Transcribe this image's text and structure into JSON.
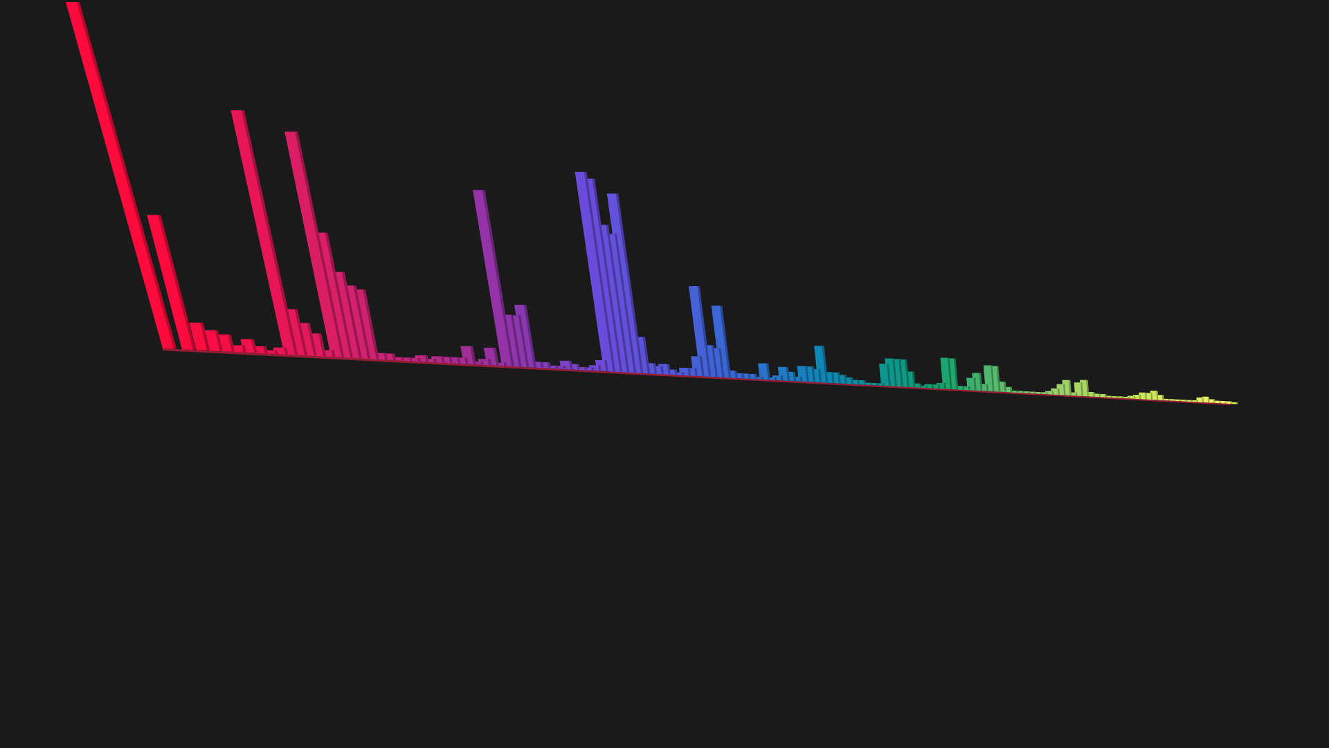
{
  "colors": {
    "background": "#1a1a1a",
    "stops": [
      "#ff0a3c",
      "#d6206a",
      "#9a2f9e",
      "#6a4cdc",
      "#3b66d6",
      "#0a8ab0",
      "#13a06c",
      "#8fcf6e",
      "#c8e35a",
      "#f5f76a"
    ]
  },
  "chart_data": {
    "type": "bar",
    "title": "",
    "xlabel": "",
    "ylabel": "",
    "grid": false,
    "legend": "none",
    "perspective": "3d-receding",
    "ylim": [
      0,
      100
    ],
    "values": [
      100,
      39,
      8,
      6,
      5,
      2,
      4,
      2,
      1,
      2,
      74,
      14,
      10,
      7,
      2,
      70,
      39,
      27,
      23,
      22,
      2,
      2,
      1,
      1,
      1,
      2,
      1,
      2,
      2,
      2,
      2,
      6,
      1,
      2,
      6,
      1,
      61,
      18,
      18,
      22,
      2,
      2,
      1,
      1,
      3,
      2,
      1,
      1,
      2,
      4,
      75,
      73,
      56,
      53,
      69,
      14,
      4,
      3,
      4,
      2,
      1,
      3,
      3,
      8,
      37,
      13,
      12,
      30,
      3,
      2,
      2,
      2,
      1,
      7,
      1,
      2,
      6,
      4,
      2,
      7,
      7,
      6,
      17,
      5,
      5,
      4,
      3,
      2,
      2,
      1,
      1,
      1,
      11,
      14,
      14,
      14,
      8,
      2,
      1,
      2,
      2,
      3,
      17,
      17,
      2,
      2,
      7,
      10,
      4,
      15,
      15,
      6,
      3,
      1,
      1,
      1,
      1,
      1,
      1,
      2,
      4,
      7,
      10,
      2,
      9,
      11,
      3,
      2,
      2,
      1,
      1,
      1,
      1,
      2,
      3,
      5,
      5,
      7,
      4,
      1,
      1,
      1,
      1,
      1,
      1,
      4,
      5,
      3,
      2,
      2,
      2,
      1
    ]
  }
}
